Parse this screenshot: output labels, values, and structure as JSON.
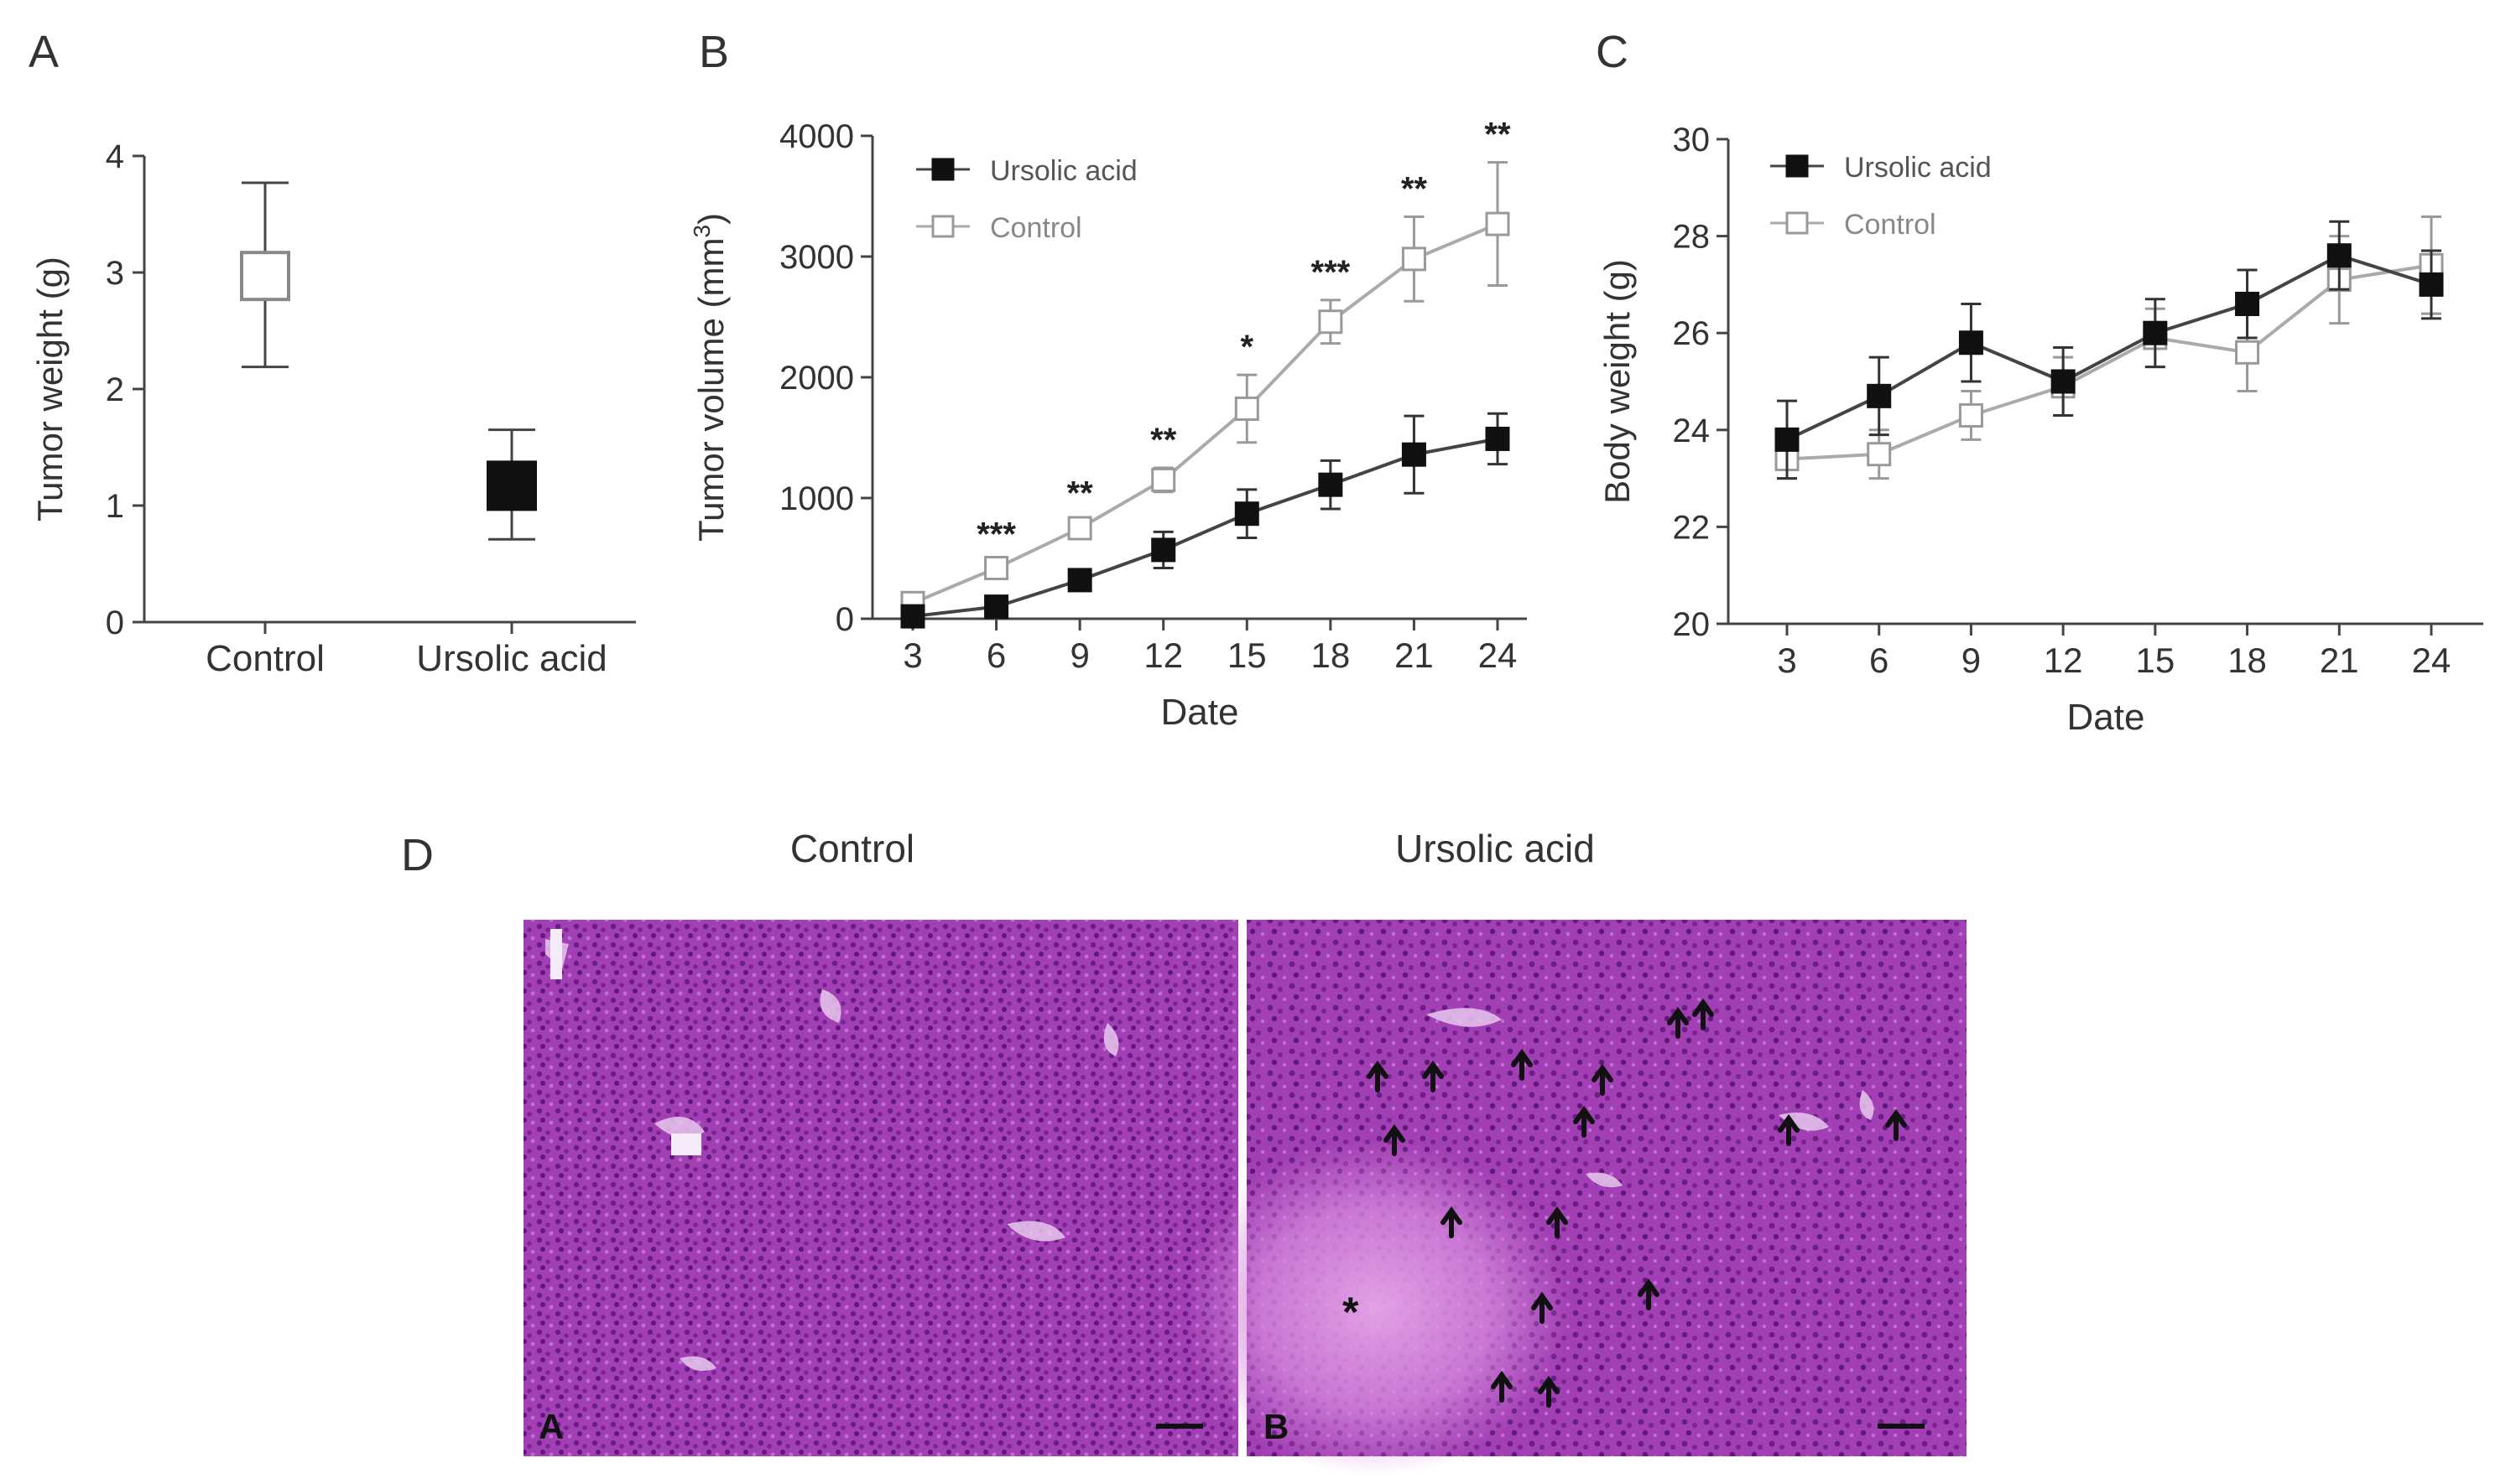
{
  "figure": {
    "panel_labels": {
      "A": "A",
      "B": "B",
      "C": "C",
      "D": "D"
    }
  },
  "chart_data": [
    {
      "panel": "A",
      "type": "scatter",
      "categories": [
        "Control",
        "Ursolic acid"
      ],
      "ylabel": "Tumor weight (g)",
      "xlabel": "",
      "ylim": [
        0,
        4
      ],
      "yticks": [
        "0",
        "1",
        "2",
        "3",
        "4"
      ],
      "series": [
        {
          "marker": "open-square",
          "category": "Control",
          "mean": 2.97,
          "err_high": 3.77,
          "err_low": 2.19
        },
        {
          "marker": "filled-square",
          "category": "Ursolic acid",
          "mean": 1.17,
          "err_high": 1.65,
          "err_low": 0.71
        }
      ]
    },
    {
      "panel": "B",
      "type": "line",
      "x": [
        3,
        6,
        9,
        12,
        15,
        18,
        21,
        24
      ],
      "xticks": [
        "3",
        "6",
        "9",
        "12",
        "15",
        "18",
        "21",
        "24"
      ],
      "xlabel": "Date",
      "ylabel": "Tumor volume (mm",
      "ylabel_sup": "3",
      "ylabel_tail": ")",
      "ylim": [
        0,
        4000
      ],
      "yticks": [
        "0",
        "1000",
        "2000",
        "3000",
        "4000"
      ],
      "legend_position": "top-left",
      "series": [
        {
          "name": "Ursolic acid",
          "marker": "filled-square",
          "color": "#111111",
          "values": [
            20,
            100,
            320,
            570,
            870,
            1110,
            1360,
            1490
          ],
          "err": [
            30,
            40,
            60,
            150,
            200,
            200,
            320,
            210
          ]
        },
        {
          "name": "Control",
          "marker": "open-square",
          "color": "#999999",
          "values": [
            130,
            420,
            750,
            1150,
            1740,
            2460,
            2980,
            3270
          ],
          "err": [
            40,
            50,
            60,
            100,
            280,
            180,
            350,
            510
          ]
        }
      ],
      "significance": [
        "",
        "***",
        "**",
        "**",
        "*",
        "***",
        "**",
        "**"
      ]
    },
    {
      "panel": "C",
      "type": "line",
      "x": [
        3,
        6,
        9,
        12,
        15,
        18,
        21,
        24
      ],
      "xticks": [
        "3",
        "6",
        "9",
        "12",
        "15",
        "18",
        "21",
        "24"
      ],
      "xlabel": "Date",
      "ylabel": "Body weight (g)",
      "ylim": [
        20,
        30
      ],
      "yticks": [
        "20",
        "22",
        "24",
        "26",
        "28",
        "30"
      ],
      "legend_position": "top-left",
      "series": [
        {
          "name": "Ursolic acid",
          "marker": "filled-square",
          "color": "#111111",
          "values": [
            23.8,
            24.7,
            25.8,
            25.0,
            26.0,
            26.6,
            27.6,
            27.0
          ],
          "err": [
            0.8,
            0.8,
            0.8,
            0.7,
            0.7,
            0.7,
            0.7,
            0.7
          ]
        },
        {
          "name": "Control",
          "marker": "open-square",
          "color": "#999999",
          "values": [
            23.4,
            23.5,
            24.3,
            24.9,
            25.9,
            25.6,
            27.1,
            27.4
          ],
          "err": [
            0.4,
            0.5,
            0.5,
            0.6,
            0.6,
            0.8,
            0.9,
            1.0
          ]
        }
      ]
    }
  ],
  "histology": {
    "control_title": "Control",
    "treated_title": "Ursolic acid",
    "control_tag": "A",
    "treated_tag": "B",
    "tissue_color": "#a23fb4",
    "arrow_count": 16,
    "necrosis_mark": "*"
  }
}
